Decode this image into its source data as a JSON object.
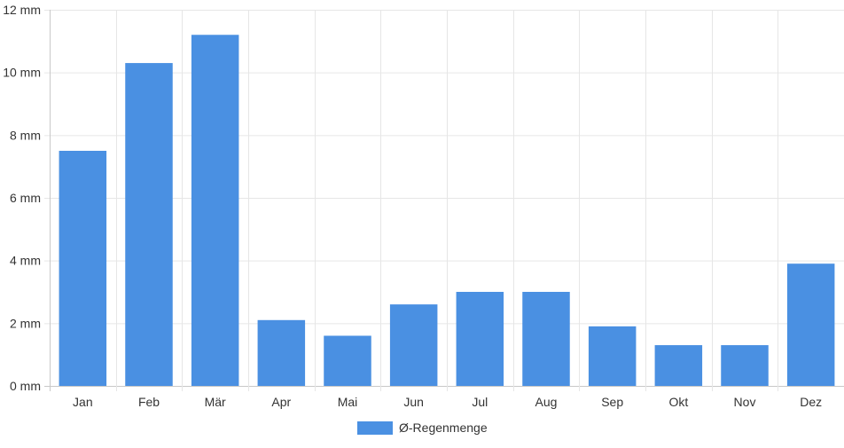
{
  "chart_data": {
    "type": "bar",
    "categories": [
      "Jan",
      "Feb",
      "Mär",
      "Apr",
      "Mai",
      "Jun",
      "Jul",
      "Aug",
      "Sep",
      "Okt",
      "Nov",
      "Dez"
    ],
    "series": [
      {
        "name": "Ø-Regenmenge",
        "values": [
          7.5,
          10.3,
          11.2,
          2.1,
          1.6,
          2.6,
          3.0,
          3.0,
          1.9,
          1.3,
          1.3,
          3.9
        ],
        "color": "#4a90e2"
      }
    ],
    "y_ticks": [
      "0 mm",
      "2 mm",
      "4 mm",
      "6 mm",
      "8 mm",
      "10 mm",
      "12 mm"
    ],
    "ylim": [
      0,
      12
    ],
    "y_step": 2,
    "grid": true,
    "legend_position": "bottom-center",
    "title": "",
    "xlabel": "",
    "ylabel": ""
  }
}
